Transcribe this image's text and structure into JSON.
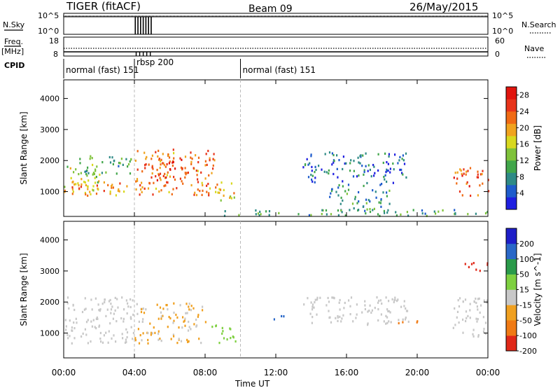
{
  "header": {
    "title": "TIGER (fitACF)",
    "beam": "Beam 09",
    "date": "26/May/2015"
  },
  "top_panel": {
    "nsky_label": "N.Sky",
    "nsky_ticks": [
      "10^5",
      "10^0"
    ],
    "nsearch_label": "N.Search",
    "nsearch_ticks": [
      "10^5",
      "10^0"
    ],
    "freq_label": "Freq.",
    "freq_unit": "[MHz]",
    "freq_ticks": [
      "18",
      "8"
    ],
    "nave_label": "Nave",
    "nave_ticks": [
      "60",
      "0"
    ],
    "cpid_label": "CPID",
    "cpid_segments": [
      {
        "start_hour": 0,
        "end_hour": 4,
        "label": "normal (fast) 151"
      },
      {
        "start_hour": 4,
        "end_hour": 10,
        "label": "rbsp 200"
      },
      {
        "start_hour": 10,
        "end_hour": 24,
        "label": "normal (fast) 151"
      }
    ]
  },
  "chart_data": [
    {
      "type": "heatmap",
      "name": "Power",
      "ylabel": "Slant Range [km]",
      "yticks": [
        1000,
        2000,
        3000,
        4000
      ],
      "ylim": [
        200,
        4600
      ],
      "xlim": [
        0,
        24
      ],
      "colorbar": {
        "label": "Power [dB]",
        "range": [
          0,
          30
        ],
        "ticks": [
          4,
          8,
          12,
          16,
          20,
          24,
          28
        ],
        "colors": [
          "#1f1fe0",
          "#1e5ccc",
          "#2e8a86",
          "#41a64a",
          "#7fc23a",
          "#d8d81f",
          "#f0a31e",
          "#f06a14",
          "#e8341a",
          "#e0140e"
        ]
      },
      "regions": [
        {
          "x": [
            0,
            2
          ],
          "y": [
            900,
            1900
          ],
          "value": 16
        },
        {
          "x": [
            0,
            3.8
          ],
          "y": [
            900,
            1400
          ],
          "value": 20
        },
        {
          "x": [
            0.5,
            3.8
          ],
          "y": [
            1600,
            2200
          ],
          "value": 10
        },
        {
          "x": [
            4,
            8.5
          ],
          "y": [
            900,
            2400
          ],
          "value": 22
        },
        {
          "x": [
            4.8,
            6.8
          ],
          "y": [
            1300,
            2200
          ],
          "value": 26
        },
        {
          "x": [
            8.5,
            9.8
          ],
          "y": [
            700,
            1400
          ],
          "value": 18
        },
        {
          "x": [
            13.5,
            19.5
          ],
          "y": [
            1300,
            2300
          ],
          "value": 6
        },
        {
          "x": [
            15,
            18.5
          ],
          "y": [
            400,
            1300
          ],
          "value": 8
        },
        {
          "x": [
            22,
            24
          ],
          "y": [
            900,
            1800
          ],
          "value": 24
        },
        {
          "x": [
            9,
            24
          ],
          "y": [
            250,
            450
          ],
          "value": 10
        }
      ]
    },
    {
      "type": "heatmap",
      "name": "Velocity",
      "ylabel": "Slant Range [km]",
      "xlabel": "Time UT",
      "yticks": [
        1000,
        2000,
        3000,
        4000
      ],
      "ylim": [
        200,
        4600
      ],
      "xlim": [
        0,
        24
      ],
      "xticks": [
        "00:00",
        "04:00",
        "08:00",
        "12:00",
        "16:00",
        "20:00",
        "00:00"
      ],
      "colorbar": {
        "label": "Velocity [m s^-1]",
        "ticks": [
          200,
          100,
          50,
          15,
          -15,
          -50,
          -100,
          -200
        ],
        "colors": [
          "#1e1ec8",
          "#2a68c8",
          "#2a9a4a",
          "#7ed040",
          "#c8c8c8",
          "#f0a020",
          "#f07a14",
          "#e02818"
        ]
      },
      "regions": [
        {
          "x": [
            0,
            4
          ],
          "y": [
            700,
            2200
          ],
          "value": 0
        },
        {
          "x": [
            4,
            8
          ],
          "y": [
            700,
            2000
          ],
          "value": -20
        },
        {
          "x": [
            8.3,
            9.7
          ],
          "y": [
            700,
            1300
          ],
          "value": 30
        },
        {
          "x": [
            13.5,
            19.5
          ],
          "y": [
            1300,
            2200
          ],
          "value": 0
        },
        {
          "x": [
            18.5,
            20
          ],
          "y": [
            1300,
            1450
          ],
          "value": -60
        },
        {
          "x": [
            11.5,
            12.5
          ],
          "y": [
            1450,
            1600
          ],
          "value": 120
        },
        {
          "x": [
            22,
            24
          ],
          "y": [
            900,
            2200
          ],
          "value": 0
        },
        {
          "x": [
            22.5,
            24
          ],
          "y": [
            3000,
            3300
          ],
          "value": -150
        }
      ]
    }
  ]
}
